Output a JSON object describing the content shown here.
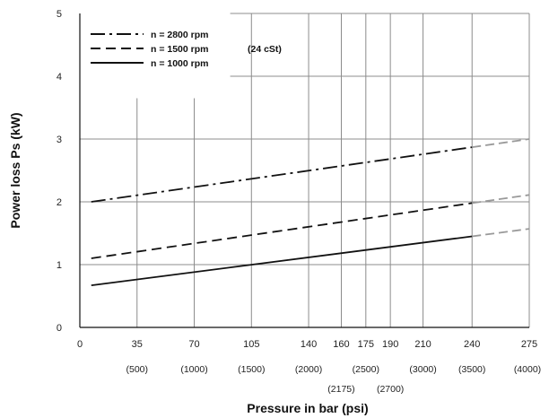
{
  "chart_data": {
    "type": "line",
    "xlabel": "Pressure in bar (psi)",
    "ylabel": "Power loss Ps (kW)",
    "xlim": [
      0,
      275
    ],
    "ylim": [
      0,
      5
    ],
    "grid": true,
    "legend_position": "top-left",
    "x_ticks": [
      "0",
      "35",
      "70",
      "105",
      "140",
      "160",
      "175",
      "190",
      "210",
      "240",
      "275"
    ],
    "y_ticks": [
      "0",
      "1",
      "2",
      "3",
      "4",
      "5"
    ],
    "psi_labels": [
      {
        "bar": 35,
        "text": "(500)"
      },
      {
        "bar": 70,
        "text": "(1000)"
      },
      {
        "bar": 105,
        "text": "(1500)"
      },
      {
        "bar": 140,
        "text": "(2000)"
      },
      {
        "bar": 160,
        "text": "(2175)"
      },
      {
        "bar": 175,
        "text": "(2500)"
      },
      {
        "bar": 190,
        "text": "(2700)"
      },
      {
        "bar": 210,
        "text": "(3000)"
      },
      {
        "bar": 240,
        "text": "(3500)"
      },
      {
        "bar": 275,
        "text": "(4000)"
      }
    ],
    "legend_note": "(24 cSt)",
    "series": [
      {
        "name": "n = 2800 rpm",
        "style": "dashdot",
        "color": "#111111",
        "extension_color": "#999999",
        "x": [
          7,
          240
        ],
        "y": [
          2.0,
          2.87
        ],
        "extension_x": [
          240,
          275
        ],
        "extension_y": [
          2.87,
          3.0
        ]
      },
      {
        "name": "n = 1500 rpm",
        "style": "dashed",
        "color": "#111111",
        "extension_color": "#999999",
        "x": [
          7,
          240
        ],
        "y": [
          1.1,
          1.98
        ],
        "extension_x": [
          240,
          275
        ],
        "extension_y": [
          1.98,
          2.11
        ]
      },
      {
        "name": "n = 1000 rpm",
        "style": "solid",
        "color": "#111111",
        "extension_color": "#999999",
        "x": [
          7,
          240
        ],
        "y": [
          0.67,
          1.45
        ],
        "extension_x": [
          240,
          275
        ],
        "extension_y": [
          1.45,
          1.57
        ]
      }
    ]
  }
}
